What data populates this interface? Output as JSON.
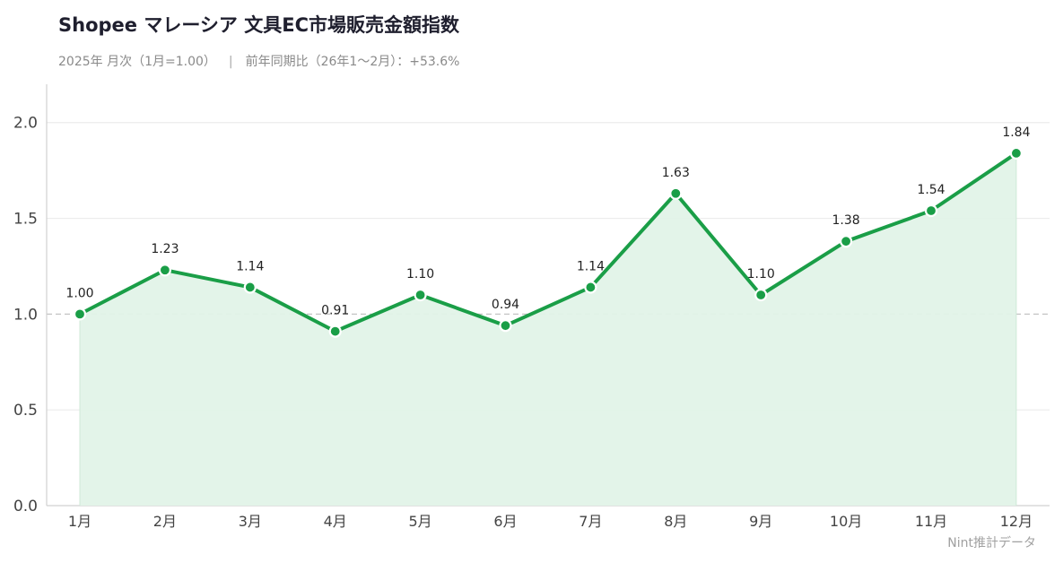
{
  "header": {
    "title": "Shopee マレーシア 文具EC市場販売金額指数",
    "subtitle_left": "2025年 月次（1月=1.00）",
    "subtitle_sep": "|",
    "subtitle_right": "前年同期比（26年1〜2月）：+53.6%"
  },
  "footer": {
    "source": "Nint推計データ"
  },
  "chart_data": {
    "type": "area",
    "categories": [
      "1月",
      "2月",
      "3月",
      "4月",
      "5月",
      "6月",
      "7月",
      "8月",
      "9月",
      "10月",
      "11月",
      "12月"
    ],
    "series": [
      {
        "values": [
          1.0,
          1.23,
          1.14,
          0.91,
          1.1,
          0.94,
          1.14,
          1.63,
          1.1,
          1.38,
          1.54,
          1.84
        ],
        "labels": [
          "1.00",
          "1.23",
          "1.14",
          "0.91",
          "1.10",
          "0.94",
          "1.14",
          "1.63",
          "1.10",
          "1.38",
          "1.54",
          "1.84"
        ]
      }
    ],
    "ylim": [
      0,
      2.2
    ],
    "yticks": [
      "0.0",
      "0.5",
      "1.0",
      "1.5",
      "2.0"
    ],
    "ytick_values": [
      0,
      0.5,
      1.0,
      1.5,
      2.0
    ],
    "reference_line": 1.0,
    "grid": true,
    "colors": {
      "line": "#1a9e47",
      "fill": "#e2f3e8",
      "grid": "#ececec",
      "reference": "#c4c4c4"
    }
  }
}
